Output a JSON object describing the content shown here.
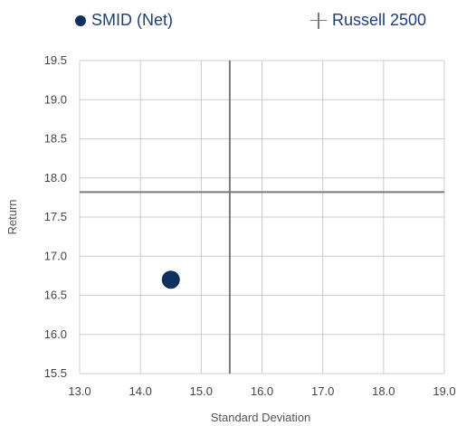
{
  "chart_data": {
    "type": "scatter",
    "xlabel": "Standard Deviation",
    "ylabel": "Return",
    "xlim": [
      13.0,
      19.0
    ],
    "ylim": [
      15.5,
      19.5
    ],
    "xticks": [
      "13.0",
      "14.0",
      "15.0",
      "16.0",
      "17.0",
      "18.0",
      "19.0"
    ],
    "yticks": [
      "15.5",
      "16.0",
      "16.5",
      "17.0",
      "17.5",
      "18.0",
      "18.5",
      "19.0",
      "19.5"
    ],
    "grid": true,
    "legend_position": "top",
    "series": [
      {
        "name": "SMID (Net)",
        "marker": "dot",
        "color": "#0f2f5c",
        "x": 14.5,
        "y": 16.7
      },
      {
        "name": "Russell 2500",
        "marker": "crosshair",
        "color": "#7a7a7a",
        "x": 15.47,
        "y": 17.82
      }
    ]
  },
  "colors": {
    "axis_text": "#444444",
    "grid": "#cccccc",
    "legend_text": "#1f3f74"
  }
}
